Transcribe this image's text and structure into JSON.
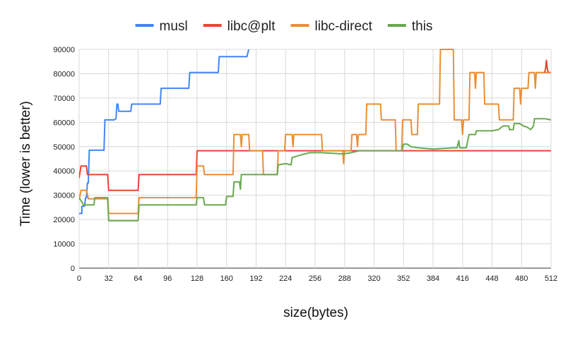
{
  "chart_data": {
    "type": "line",
    "title": "",
    "xlabel": "size(bytes)",
    "ylabel": "Time (lower is better)",
    "xlim": [
      0,
      512
    ],
    "ylim": [
      0,
      90000
    ],
    "x_ticks": [
      0,
      32,
      64,
      96,
      128,
      160,
      192,
      224,
      256,
      288,
      320,
      352,
      384,
      416,
      448,
      480,
      512
    ],
    "y_ticks": [
      0,
      10000,
      20000,
      30000,
      40000,
      50000,
      60000,
      70000,
      80000,
      90000
    ],
    "grid": true,
    "legend_position": "top",
    "series": [
      {
        "name": "musl",
        "color": "#4285f4",
        "points": [
          [
            0,
            22500
          ],
          [
            3,
            22500
          ],
          [
            3,
            25500
          ],
          [
            6,
            25500
          ],
          [
            7,
            29000
          ],
          [
            8,
            29000
          ],
          [
            9,
            35000
          ],
          [
            10,
            35000
          ],
          [
            11,
            48500
          ],
          [
            27,
            48500
          ],
          [
            28,
            61000
          ],
          [
            38,
            61000
          ],
          [
            40,
            61500
          ],
          [
            41,
            67500
          ],
          [
            42,
            67500
          ],
          [
            43,
            64500
          ],
          [
            56,
            64500
          ],
          [
            57,
            67500
          ],
          [
            88,
            67500
          ],
          [
            89,
            74000
          ],
          [
            119,
            74000
          ],
          [
            120,
            80500
          ],
          [
            151,
            80500
          ],
          [
            152,
            87000
          ],
          [
            182,
            87000
          ],
          [
            184,
            90000
          ]
        ]
      },
      {
        "name": "libc@plt",
        "color": "#ea4335",
        "points": [
          [
            0,
            37000
          ],
          [
            2,
            42000
          ],
          [
            8,
            42000
          ],
          [
            9,
            38500
          ],
          [
            31,
            38500
          ],
          [
            32,
            32000
          ],
          [
            64,
            32000
          ],
          [
            65,
            38500
          ],
          [
            127,
            38500
          ],
          [
            128,
            48300
          ],
          [
            215,
            48300
          ],
          [
            216,
            48300
          ],
          [
            512,
            48300
          ]
        ]
      },
      {
        "name": "libc-direct",
        "color": "#ea8e35",
        "points": [
          [
            0,
            28000
          ],
          [
            2,
            32000
          ],
          [
            8,
            32000
          ],
          [
            9,
            30500
          ],
          [
            10,
            28500
          ],
          [
            31,
            28500
          ],
          [
            32,
            22500
          ],
          [
            64,
            22500
          ],
          [
            65,
            29000
          ],
          [
            127,
            29000
          ],
          [
            128,
            42000
          ],
          [
            135,
            42000
          ],
          [
            136,
            38500
          ],
          [
            167,
            38500
          ],
          [
            168,
            55000
          ],
          [
            175,
            55000
          ],
          [
            176,
            50000
          ],
          [
            177,
            55000
          ],
          [
            184,
            55000
          ],
          [
            185,
            48300
          ],
          [
            199,
            48300
          ],
          [
            200,
            38500
          ],
          [
            215,
            38500
          ],
          [
            216,
            48300
          ],
          [
            223,
            48300
          ],
          [
            224,
            55000
          ],
          [
            231,
            55000
          ],
          [
            232,
            50000
          ],
          [
            233,
            55000
          ],
          [
            263,
            55000
          ],
          [
            264,
            48300
          ],
          [
            286,
            48300
          ],
          [
            287,
            43000
          ],
          [
            288,
            48300
          ],
          [
            295,
            48300
          ],
          [
            296,
            55000
          ],
          [
            301,
            55000
          ],
          [
            302,
            50000
          ],
          [
            303,
            55000
          ],
          [
            311,
            55000
          ],
          [
            312,
            67500
          ],
          [
            327,
            67500
          ],
          [
            328,
            61000
          ],
          [
            343,
            61000
          ],
          [
            344,
            48300
          ],
          [
            350,
            48300
          ],
          [
            351,
            61000
          ],
          [
            360,
            61000
          ],
          [
            361,
            55000
          ],
          [
            367,
            55000
          ],
          [
            368,
            67500
          ],
          [
            391,
            67500
          ],
          [
            392,
            90000
          ],
          [
            406,
            90000
          ],
          [
            407,
            61000
          ],
          [
            415,
            61000
          ],
          [
            416,
            55000
          ],
          [
            417,
            61000
          ],
          [
            423,
            61000
          ],
          [
            424,
            80500
          ],
          [
            429,
            80500
          ],
          [
            430,
            74000
          ],
          [
            431,
            80500
          ],
          [
            439,
            80500
          ],
          [
            440,
            67500
          ],
          [
            455,
            67500
          ],
          [
            456,
            61000
          ],
          [
            471,
            61000
          ],
          [
            472,
            74000
          ],
          [
            478,
            74000
          ],
          [
            479,
            67500
          ],
          [
            480,
            74000
          ],
          [
            487,
            74000
          ],
          [
            488,
            80500
          ],
          [
            494,
            80500
          ],
          [
            495,
            74000
          ],
          [
            496,
            80500
          ],
          [
            512,
            80500
          ]
        ]
      },
      {
        "name": "this",
        "color": "#6aa84f",
        "points": [
          [
            0,
            29000
          ],
          [
            5,
            26000
          ],
          [
            16,
            26000
          ],
          [
            17,
            29000
          ],
          [
            31,
            29000
          ],
          [
            32,
            19500
          ],
          [
            64,
            19500
          ],
          [
            65,
            26000
          ],
          [
            127,
            26000
          ],
          [
            128,
            29000
          ],
          [
            135,
            29000
          ],
          [
            136,
            26000
          ],
          [
            159,
            26000
          ],
          [
            160,
            29500
          ],
          [
            167,
            29500
          ],
          [
            168,
            35500
          ],
          [
            174,
            35500
          ],
          [
            175,
            32500
          ],
          [
            176,
            38500
          ],
          [
            215,
            38500
          ],
          [
            216,
            42500
          ],
          [
            224,
            43000
          ],
          [
            230,
            42500
          ],
          [
            231,
            45500
          ],
          [
            240,
            46500
          ],
          [
            250,
            47500
          ],
          [
            263,
            47500
          ],
          [
            287,
            47000
          ],
          [
            295,
            47500
          ],
          [
            304,
            48300
          ],
          [
            350,
            48300
          ],
          [
            352,
            51000
          ],
          [
            356,
            51000
          ],
          [
            360,
            50000
          ],
          [
            368,
            49500
          ],
          [
            384,
            49000
          ],
          [
            406,
            49500
          ],
          [
            410,
            49500
          ],
          [
            412,
            52500
          ],
          [
            413,
            49500
          ],
          [
            420,
            49500
          ],
          [
            423,
            55000
          ],
          [
            430,
            55000
          ],
          [
            431,
            56500
          ],
          [
            448,
            56500
          ],
          [
            455,
            57000
          ],
          [
            460,
            58500
          ],
          [
            466,
            58500
          ],
          [
            467,
            57000
          ],
          [
            471,
            57000
          ],
          [
            472,
            59500
          ],
          [
            478,
            59500
          ],
          [
            482,
            58500
          ],
          [
            486,
            58000
          ],
          [
            488,
            57500
          ],
          [
            490,
            57000
          ],
          [
            493,
            58500
          ],
          [
            494,
            61500
          ],
          [
            505,
            61500
          ],
          [
            512,
            61000
          ]
        ]
      },
      {
        "name": "",
        "color": "#ea4335",
        "points": [
          [
            505,
            80500
          ],
          [
            506,
            82000
          ],
          [
            507,
            85500
          ],
          [
            508,
            82000
          ],
          [
            509,
            80500
          ]
        ]
      }
    ]
  }
}
